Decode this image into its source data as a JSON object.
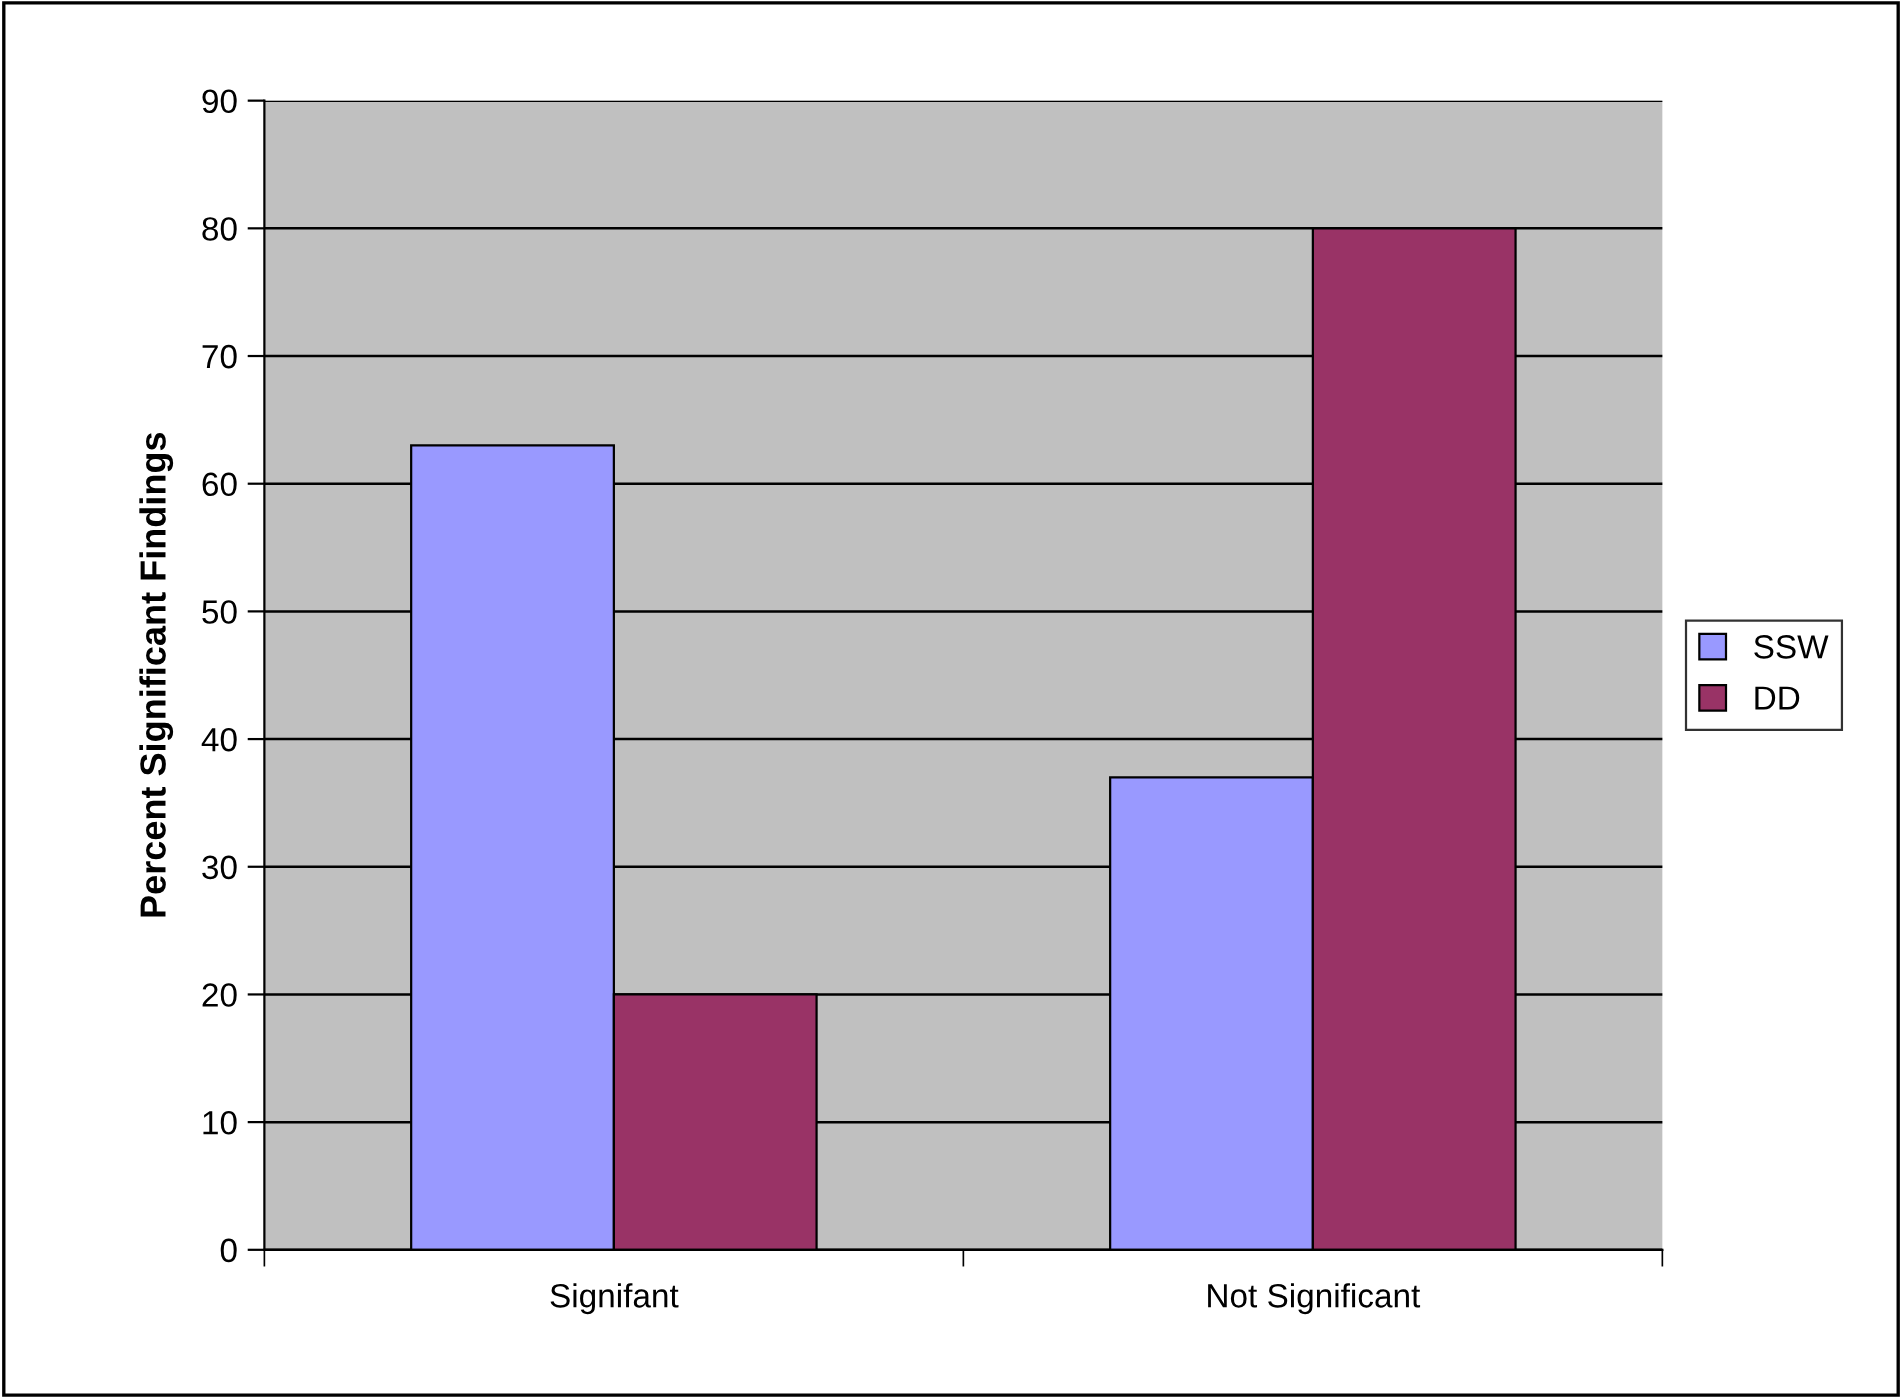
{
  "chart_data": {
    "type": "bar",
    "ylabel": "Percent Significant Findings",
    "categories": [
      "Signifant",
      "Not Significant"
    ],
    "series": [
      {
        "name": "SSW",
        "color": "#9999ff",
        "values": [
          63,
          37
        ]
      },
      {
        "name": "DD",
        "color": "#993366",
        "values": [
          20,
          80
        ]
      }
    ],
    "ylim": [
      0,
      90
    ],
    "yticks": [
      0,
      10,
      20,
      30,
      40,
      50,
      60,
      70,
      80,
      90
    ],
    "grid": "y",
    "legend": "right"
  }
}
